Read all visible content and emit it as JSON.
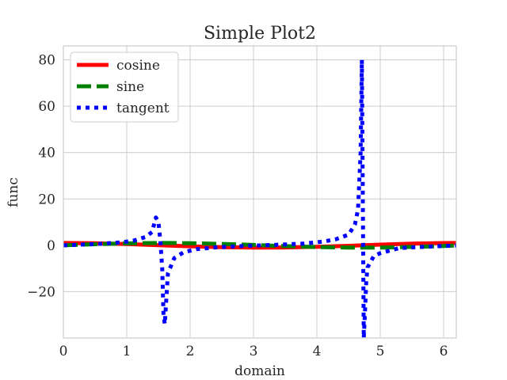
{
  "chart_data": {
    "type": "line",
    "title": "Simple Plot2",
    "xlabel": "domain",
    "ylabel": "func",
    "xlim": [
      0,
      6.2
    ],
    "ylim": [
      -40,
      86
    ],
    "xticks": [
      0,
      1,
      2,
      3,
      4,
      5,
      6
    ],
    "yticks": [
      -20,
      0,
      20,
      40,
      60,
      80
    ],
    "grid": true,
    "legend_position": "top-left",
    "series": [
      {
        "name": "cosine",
        "color": "#ff0000",
        "style": "solid",
        "x": [
          0,
          0.5,
          1,
          1.5,
          2,
          2.5,
          3,
          3.14,
          3.5,
          4,
          4.5,
          5,
          5.5,
          6,
          6.2
        ],
        "y": [
          1,
          0.88,
          0.54,
          0.07,
          -0.42,
          -0.8,
          -0.99,
          -1,
          -0.94,
          -0.65,
          -0.21,
          0.28,
          0.71,
          0.96,
          1
        ]
      },
      {
        "name": "sine",
        "color": "#008000",
        "style": "dashed",
        "x": [
          0,
          0.5,
          1,
          1.57,
          2,
          2.5,
          3,
          3.5,
          4,
          4.5,
          4.71,
          5,
          5.5,
          6,
          6.2
        ],
        "y": [
          0,
          0.48,
          0.84,
          1,
          0.91,
          0.6,
          0.14,
          -0.35,
          -0.76,
          -0.98,
          -1,
          -0.96,
          -0.71,
          -0.28,
          -0.08
        ]
      },
      {
        "name": "tangent",
        "color": "#0000ff",
        "style": "dotted",
        "x": [
          0,
          0.3,
          0.6,
          0.9,
          1.1,
          1.3,
          1.4,
          1.46,
          1.5,
          1.53,
          1.56,
          1.58,
          1.6,
          1.65,
          1.75,
          1.9,
          2.1,
          2.4,
          2.8,
          3.1,
          3.4,
          3.8,
          4.1,
          4.3,
          4.5,
          4.6,
          4.65,
          4.69,
          4.71,
          4.74,
          4.76,
          4.78,
          4.8,
          4.9,
          5.0,
          5.3,
          5.6,
          6.0,
          6.2
        ],
        "y": [
          0,
          0.31,
          0.68,
          1.26,
          1.96,
          3.6,
          5.8,
          12,
          10,
          2,
          -10,
          -30,
          -34,
          -12,
          -5.5,
          -3,
          -1.7,
          -0.9,
          -0.36,
          -0.04,
          0.26,
          0.77,
          1.6,
          2.6,
          4.6,
          8.9,
          15.6,
          40,
          80,
          -40,
          -28,
          -15,
          -9.5,
          -4.6,
          -3.4,
          -1.2,
          -0.75,
          -0.29,
          -0.08
        ]
      }
    ]
  }
}
